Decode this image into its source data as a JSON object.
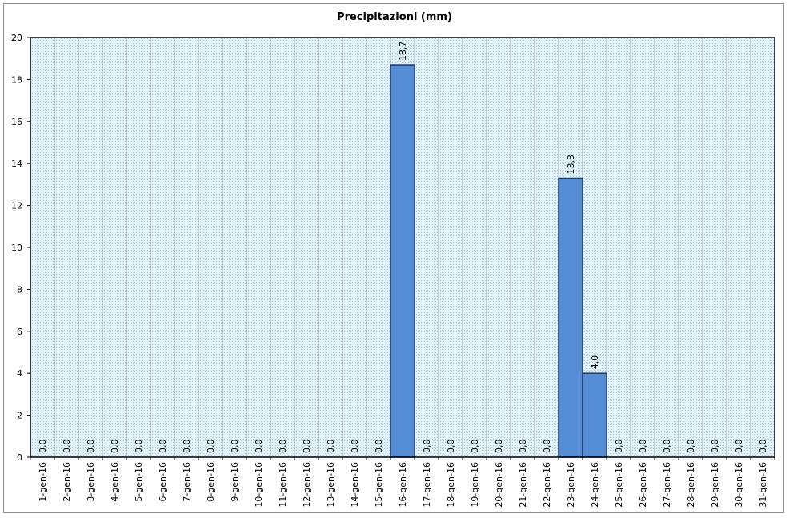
{
  "chart_data": {
    "type": "bar",
    "title": "Precipitazioni (mm)",
    "xlabel": "",
    "ylabel": "",
    "ylim": [
      0,
      20
    ],
    "yticks": [
      0,
      2,
      4,
      6,
      8,
      10,
      12,
      14,
      16,
      18,
      20
    ],
    "grid": "vertical",
    "legend": "none",
    "categories": [
      "1-gen-16",
      "2-gen-16",
      "3-gen-16",
      "4-gen-16",
      "5-gen-16",
      "6-gen-16",
      "7-gen-16",
      "8-gen-16",
      "9-gen-16",
      "10-gen-16",
      "11-gen-16",
      "12-gen-16",
      "13-gen-16",
      "14-gen-16",
      "15-gen-16",
      "16-gen-16",
      "17-gen-16",
      "18-gen-16",
      "19-gen-16",
      "20-gen-16",
      "21-gen-16",
      "22-gen-16",
      "23-gen-16",
      "24-gen-16",
      "25-gen-16",
      "26-gen-16",
      "27-gen-16",
      "28-gen-16",
      "29-gen-16",
      "30-gen-16",
      "31-gen-16"
    ],
    "values": [
      0,
      0,
      0,
      0,
      0,
      0,
      0,
      0,
      0,
      0,
      0,
      0,
      0,
      0,
      0,
      18.7,
      0,
      0,
      0,
      0,
      0,
      0,
      13.3,
      4.0,
      0,
      0,
      0,
      0,
      0,
      0,
      0
    ],
    "data_labels": [
      "0,0",
      "0,0",
      "0,0",
      "0,0",
      "0,0",
      "0,0",
      "0,0",
      "0,0",
      "0,0",
      "0,0",
      "0,0",
      "0,0",
      "0,0",
      "0,0",
      "0,0",
      "18,7",
      "0,0",
      "0,0",
      "0,0",
      "0,0",
      "0,0",
      "0,0",
      "13,3",
      "4,0",
      "0,0",
      "0,0",
      "0,0",
      "0,0",
      "0,0",
      "0,0",
      "0,0"
    ],
    "colors": {
      "bar_fill": "#558ed5",
      "bar_stroke": "#1f3864",
      "plot_background": "#dbeef4",
      "gridline": "#a6a6a6",
      "axis": "#000000"
    }
  }
}
